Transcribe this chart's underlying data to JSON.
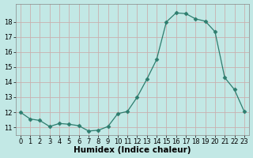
{
  "x": [
    0,
    1,
    2,
    3,
    4,
    5,
    6,
    7,
    8,
    9,
    10,
    11,
    12,
    13,
    14,
    15,
    16,
    17,
    18,
    19,
    20,
    21,
    22,
    23
  ],
  "y": [
    12.0,
    11.55,
    11.45,
    11.05,
    11.25,
    11.2,
    11.1,
    10.75,
    10.8,
    11.05,
    11.9,
    12.05,
    13.0,
    14.2,
    15.5,
    18.0,
    18.6,
    18.55,
    18.2,
    18.05,
    17.35,
    14.3,
    13.5,
    12.05
  ],
  "line_color": "#2d7d6e",
  "marker": "D",
  "marker_size": 2.5,
  "bg_color": "#c2e8e5",
  "grid_color": "#c8b0b0",
  "xlabel": "Humidex (Indice chaleur)",
  "xlim": [
    -0.5,
    23.5
  ],
  "ylim": [
    10.5,
    19.2
  ],
  "yticks": [
    11,
    12,
    13,
    14,
    15,
    16,
    17,
    18
  ],
  "xticks": [
    0,
    1,
    2,
    3,
    4,
    5,
    6,
    7,
    8,
    9,
    10,
    11,
    12,
    13,
    14,
    15,
    16,
    17,
    18,
    19,
    20,
    21,
    22,
    23
  ],
  "tick_fontsize": 6.0,
  "xlabel_fontsize": 7.5
}
